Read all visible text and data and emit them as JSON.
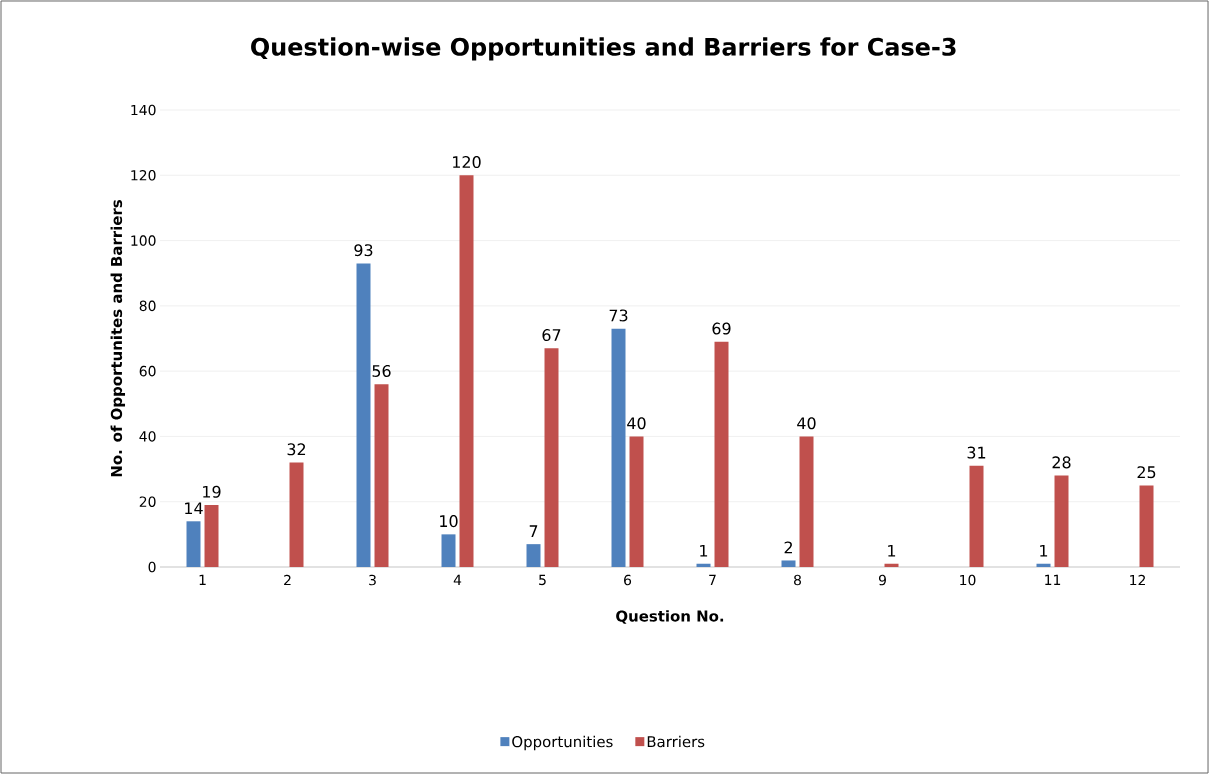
{
  "chart_data": {
    "type": "bar",
    "title": "Question-wise Opportunities and Barriers for Case-3",
    "xlabel": "Question No.",
    "ylabel": "No. of Opportunites and Barriers",
    "categories": [
      "1",
      "2",
      "3",
      "4",
      "5",
      "6",
      "7",
      "8",
      "9",
      "10",
      "11",
      "12"
    ],
    "series": [
      {
        "name": "Opportunities",
        "color": "#4f81bd",
        "values": [
          14,
          null,
          93,
          10,
          7,
          73,
          1,
          2,
          null,
          null,
          1,
          null
        ]
      },
      {
        "name": "Barriers",
        "color": "#c0504d",
        "values": [
          19,
          32,
          56,
          120,
          67,
          40,
          69,
          40,
          1,
          31,
          28,
          25
        ]
      }
    ],
    "ylim": [
      0,
      140
    ],
    "yticks": [
      0,
      20,
      40,
      60,
      80,
      100,
      120,
      140
    ],
    "grid": "y",
    "legend": "bottom",
    "data_labels": true
  }
}
